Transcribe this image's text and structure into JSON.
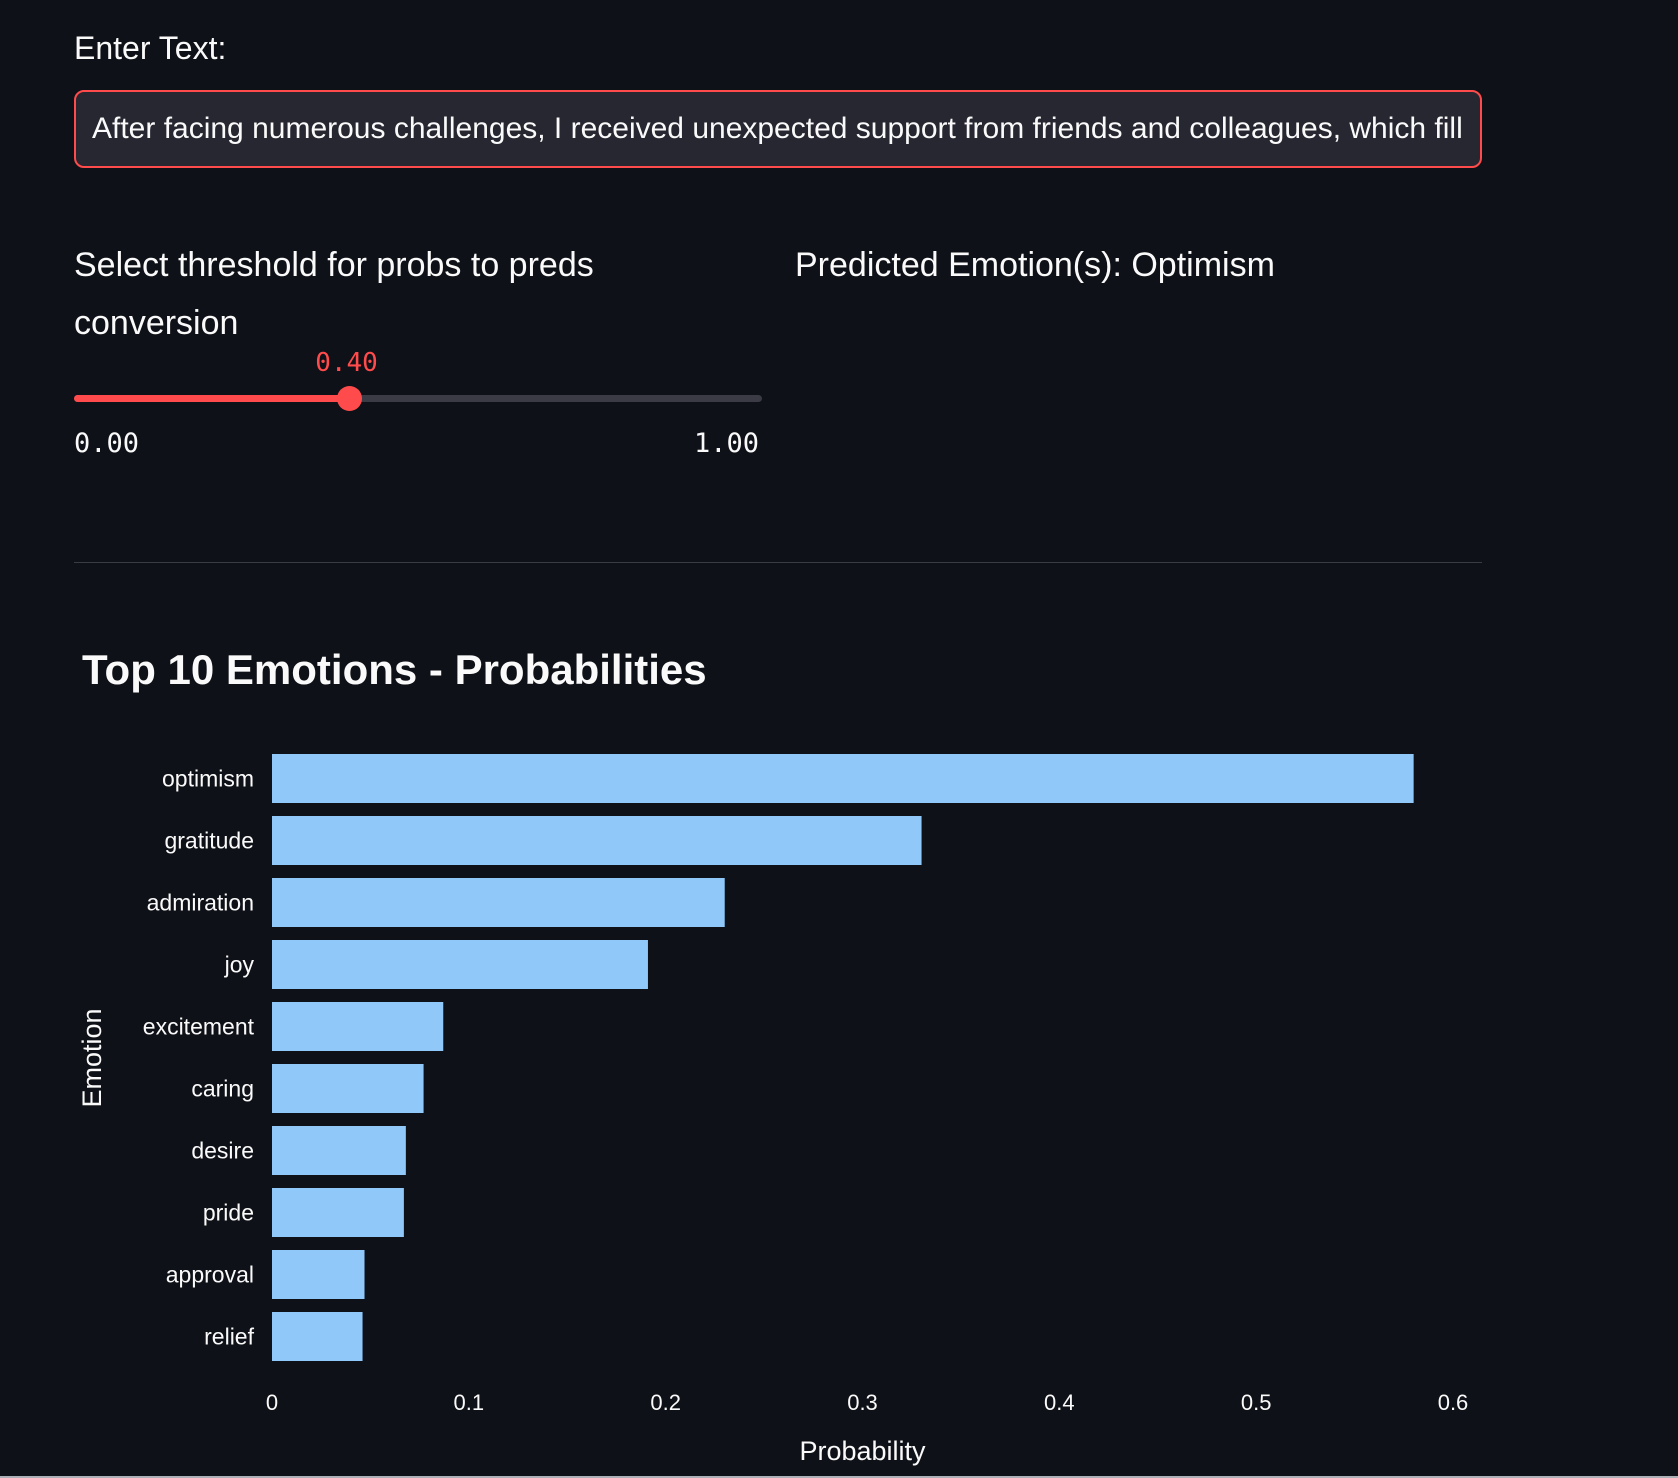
{
  "input": {
    "label": "Enter Text:",
    "value": "After facing numerous challenges, I received unexpected support from friends and colleagues, which fill"
  },
  "slider": {
    "label": "Select threshold for probs to preds conversion",
    "value": "0.40",
    "value_fraction": 0.4,
    "min": "0.00",
    "max": "1.00"
  },
  "prediction": {
    "text": "Predicted Emotion(s): Optimism"
  },
  "colors": {
    "accent": "#ff4b4b",
    "bar": "#90c8fa",
    "background": "#0e1117"
  },
  "chart_data": {
    "type": "bar",
    "orientation": "horizontal",
    "title": "Top 10 Emotions - Probabilities",
    "xlabel": "Probability",
    "ylabel": "Emotion",
    "xlim": [
      0,
      0.6
    ],
    "xticks": [
      "0",
      "0.1",
      "0.2",
      "0.3",
      "0.4",
      "0.5",
      "0.6"
    ],
    "categories": [
      "optimism",
      "gratitude",
      "admiration",
      "joy",
      "excitement",
      "caring",
      "desire",
      "pride",
      "approval",
      "relief"
    ],
    "values": [
      0.58,
      0.33,
      0.23,
      0.191,
      0.087,
      0.077,
      0.068,
      0.067,
      0.047,
      0.046
    ],
    "grid": false
  }
}
